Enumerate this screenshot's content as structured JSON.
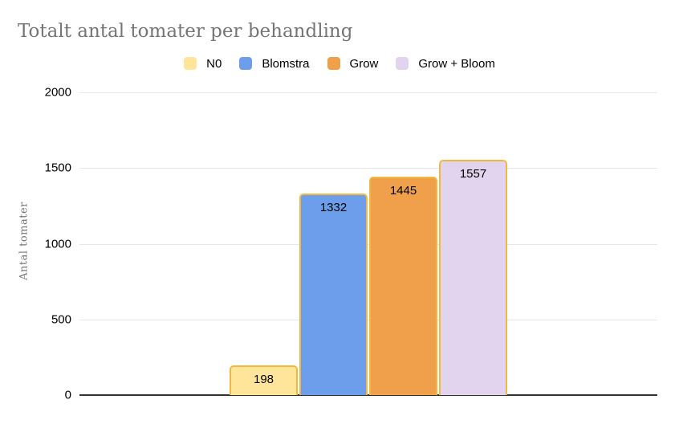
{
  "chart_data": {
    "type": "bar",
    "title": "Totalt antal tomater per behandling",
    "xlabel": "",
    "ylabel": "Antal tomater",
    "categories": [
      "N0",
      "Blomstra",
      "Grow",
      "Grow + Bloom"
    ],
    "series": [
      {
        "name": "N0",
        "value": 198,
        "color": "#ffe599"
      },
      {
        "name": "Blomstra",
        "value": 1332,
        "color": "#6d9eeb"
      },
      {
        "name": "Grow",
        "value": 1445,
        "color": "#f0a04a"
      },
      {
        "name": "Grow + Bloom",
        "value": 1557,
        "color": "#e2d4ee"
      }
    ],
    "values": [
      198,
      1332,
      1445,
      1557
    ],
    "ylim": [
      0,
      2000
    ],
    "yticks": [
      0,
      500,
      1000,
      1500,
      2000
    ],
    "grid": true,
    "legend_position": "top",
    "value_labels": true,
    "bar_border_color": "#f4b73e"
  },
  "theme": {
    "background": "#ffffff",
    "title_color": "#757575",
    "axis_title_color": "#757575",
    "tick_color": "#000000",
    "gridline_color": "#e6e6e6",
    "axis_line_color": "#333333",
    "legend_text_color": "#000000"
  }
}
